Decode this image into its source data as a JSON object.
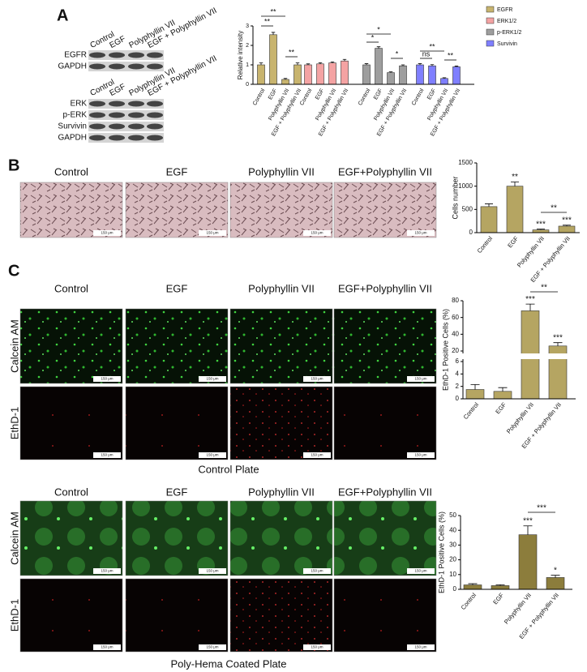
{
  "figure": {
    "panel_labels": [
      "A",
      "B",
      "C"
    ],
    "blot_1": {
      "lanes": [
        "Control",
        "EGF",
        "Polyphyllin VII",
        "EGF + Polyphyllin VII"
      ],
      "rows": [
        "EGFR",
        "GAPDH"
      ]
    },
    "blot_2": {
      "lanes": [
        "Control",
        "EGF",
        "Polyphyllin VII",
        "EGF + Polyphyllin VII"
      ],
      "rows": [
        "ERK",
        "p-ERK",
        "Survivin",
        "GAPDH"
      ]
    },
    "micrograph_columns": [
      "Control",
      "EGF",
      "Polyphyllin VII",
      "EGF+Polyphyllin VII"
    ],
    "stain_rows": [
      "Calcein AM",
      "EthD-1"
    ],
    "scale_bar": "150 μm",
    "captions": [
      "Control Plate",
      "Poly-Hema Coated Plate"
    ]
  },
  "chart_data": [
    {
      "type": "bar",
      "ylabel": "Relative intensity",
      "categories": [
        "Control",
        "EGF",
        "Polyphyllin VII",
        "EGF + Polyphyllin VII"
      ],
      "series": [
        {
          "name": "EGFR",
          "color": "#c8b46e",
          "values": [
            1.0,
            2.55,
            0.25,
            1.0
          ],
          "errors": [
            0.1,
            0.12,
            0.05,
            0.1
          ]
        },
        {
          "name": "ERK1/2",
          "color": "#f4a3a3",
          "values": [
            1.0,
            1.05,
            1.1,
            1.2
          ],
          "errors": [
            0.05,
            0.06,
            0.05,
            0.08
          ]
        },
        {
          "name": "p-ERK1/2",
          "color": "#9e9e9e",
          "values": [
            1.0,
            1.85,
            0.6,
            0.95
          ],
          "errors": [
            0.06,
            0.08,
            0.04,
            0.05
          ]
        },
        {
          "name": "Survivin",
          "color": "#7f7fff",
          "values": [
            1.0,
            0.95,
            0.3,
            0.9
          ],
          "errors": [
            0.06,
            0.06,
            0.04,
            0.04
          ]
        }
      ],
      "ylim": [
        0,
        3
      ],
      "yticks": [
        0,
        1,
        2,
        3
      ],
      "legend": "right",
      "annotations": [
        "**",
        "**",
        "**",
        "*",
        "*",
        "*",
        "ns",
        "**",
        "**"
      ]
    },
    {
      "type": "bar",
      "ylabel": "Cells number",
      "categories": [
        "Control",
        "EGF",
        "Polyphyllin VII",
        "EGF + Polyphyllin VII"
      ],
      "values": [
        560,
        1000,
        60,
        140
      ],
      "errors": [
        60,
        90,
        15,
        20
      ],
      "color": "#b5a562",
      "ylim": [
        0,
        1500
      ],
      "yticks": [
        0,
        500,
        1000,
        1500
      ],
      "annotations": [
        "**",
        "***",
        "***",
        "**"
      ]
    },
    {
      "type": "bar",
      "ylabel": "EthD-1 Positive Cells (%)",
      "categories": [
        "Control",
        "EGF",
        "Polyphyllin VII",
        "EGF + Polyphyllin VII"
      ],
      "values": [
        1.5,
        1.2,
        68,
        26
      ],
      "errors": [
        0.8,
        0.6,
        8,
        4
      ],
      "color": "#b5a562",
      "ylim": [
        0,
        80
      ],
      "ybreak": [
        6,
        20
      ],
      "yticks": [
        0,
        2,
        4,
        6,
        20,
        40,
        60,
        80
      ],
      "annotations": [
        "***",
        "***",
        "**"
      ]
    },
    {
      "type": "bar",
      "ylabel": "EthD-1 Positive Cells (%)",
      "categories": [
        "Control",
        "EGF",
        "Polyphyllin VII",
        "EGF + Polyphyllin VII"
      ],
      "values": [
        3,
        2.5,
        37,
        8
      ],
      "errors": [
        0.8,
        0.6,
        6,
        1.5
      ],
      "color": "#8c7d3c",
      "ylim": [
        0,
        50
      ],
      "yticks": [
        0,
        10,
        20,
        30,
        40,
        50
      ],
      "annotations": [
        "***",
        "*",
        "***"
      ]
    }
  ]
}
